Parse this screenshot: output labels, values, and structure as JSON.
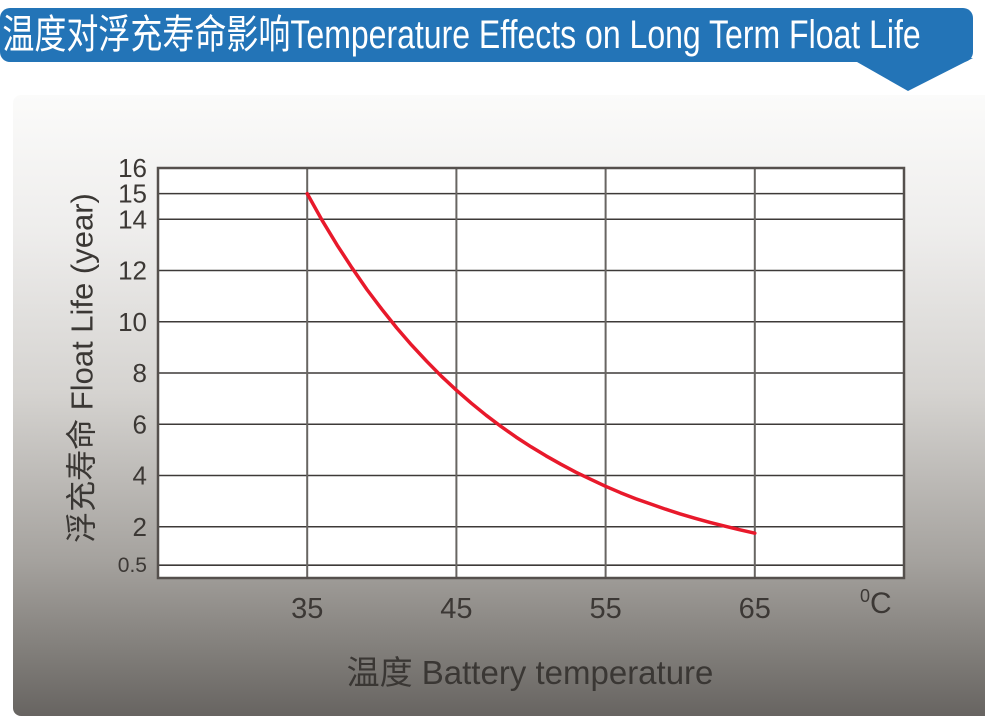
{
  "banner": {
    "title": "温度对浮充寿命影响Temperature Effects on Long Term Float Life",
    "bg_color": "#2374b7",
    "text_color": "#ffffff"
  },
  "chart_data": {
    "type": "line",
    "title": "温度对浮充寿命影响Temperature Effects on Long Term Float Life",
    "xlabel": "温度  Battery temperature",
    "ylabel": "浮充寿命  Float Life (year)",
    "x_unit": {
      "sup": "0",
      "base": "C"
    },
    "xlim": [
      25,
      75
    ],
    "ylim": [
      0,
      16
    ],
    "x_ticks": [
      35,
      45,
      55,
      65
    ],
    "y_ticks": [
      16,
      15,
      14,
      12,
      10,
      8,
      6,
      4,
      2,
      0.5
    ],
    "grid": true,
    "legend": "none",
    "colors": {
      "curve": "#e8192b",
      "h_grid": "#3d3a38",
      "v_grid": "#686562",
      "border": "#55504d",
      "tick_text": "#3c3835",
      "plot_bg": "#ffffff"
    },
    "series": [
      {
        "name": "float-life-vs-temperature",
        "color": "#e8192b",
        "points": [
          [
            35,
            15.0
          ],
          [
            36,
            13.96
          ],
          [
            37,
            13.0
          ],
          [
            38,
            12.1
          ],
          [
            39,
            11.26
          ],
          [
            40,
            10.49
          ],
          [
            41,
            9.76
          ],
          [
            42,
            9.09
          ],
          [
            43,
            8.46
          ],
          [
            44,
            7.87
          ],
          [
            45,
            7.33
          ],
          [
            46,
            6.82
          ],
          [
            47,
            6.35
          ],
          [
            48,
            5.91
          ],
          [
            49,
            5.5
          ],
          [
            50,
            5.12
          ],
          [
            51,
            4.77
          ],
          [
            52,
            4.44
          ],
          [
            53,
            4.13
          ],
          [
            54,
            3.85
          ],
          [
            55,
            3.58
          ],
          [
            56,
            3.33
          ],
          [
            57,
            3.1
          ],
          [
            58,
            2.89
          ],
          [
            59,
            2.69
          ],
          [
            60,
            2.5
          ],
          [
            61,
            2.33
          ],
          [
            62,
            2.17
          ],
          [
            63,
            2.02
          ],
          [
            64,
            1.88
          ],
          [
            65,
            1.75
          ]
        ]
      }
    ]
  }
}
